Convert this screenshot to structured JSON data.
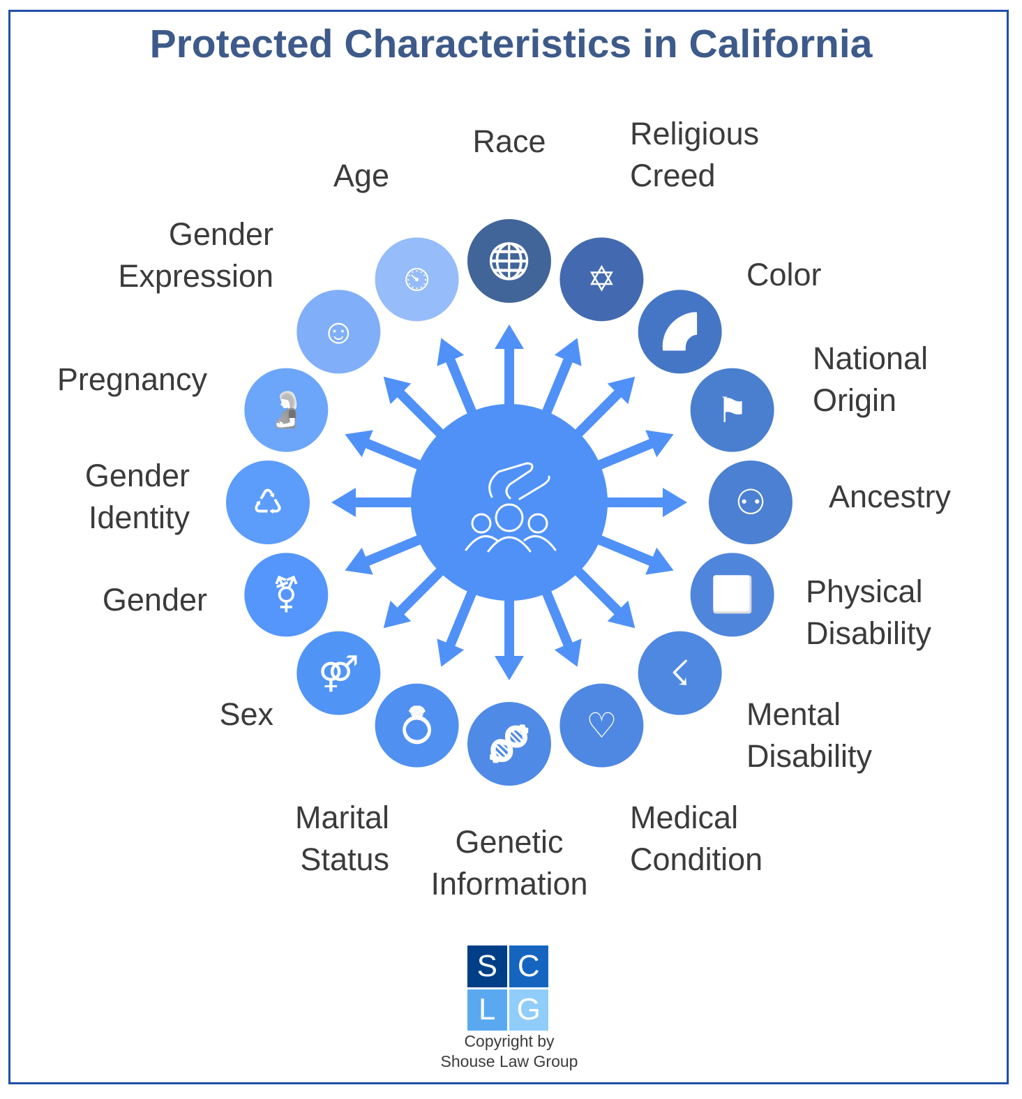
{
  "title": "Protected Characteristics in California",
  "colors": {
    "arrow": "#5091f8",
    "center": "#5091f8",
    "title": "#3d5a8a",
    "frame": "#1f4fa8"
  },
  "center_icon": "hand-over-group-icon",
  "items": [
    {
      "label": "Race",
      "icon": "globe-face-icon",
      "color": "#426599"
    },
    {
      "label": "Religious\nCreed",
      "icon": "star-scroll-icon",
      "color": "#436ab0"
    },
    {
      "label": "Color",
      "icon": "clapperboard-rainbow-icon",
      "color": "#4576c6"
    },
    {
      "label": "National\nOrigin",
      "icon": "flag-path-icon",
      "color": "#4a7fd0"
    },
    {
      "label": "Ancestry",
      "icon": "family-tree-icon",
      "color": "#4c80d2"
    },
    {
      "label": "Physical\nDisability",
      "icon": "wheelchair-icon",
      "color": "#4f86dc"
    },
    {
      "label": "Mental\nDisability",
      "icon": "head-lightning-icon",
      "color": "#4f88e0"
    },
    {
      "label": "Medical\nCondition",
      "icon": "heart-stethoscope-icon",
      "color": "#4f88e2"
    },
    {
      "label": "Genetic\nInformation",
      "icon": "dna-icon",
      "color": "#4f8ae6"
    },
    {
      "label": "Marital\nStatus",
      "icon": "ring-heart-icon",
      "color": "#5090f0"
    },
    {
      "label": "Sex",
      "icon": "male-female-icon",
      "color": "#5094f5"
    },
    {
      "label": "Gender",
      "icon": "transgender-symbol-icon",
      "color": "#5496fb"
    },
    {
      "label": "Gender\nIdentity",
      "icon": "person-cycle-icon",
      "color": "#5c9cfb"
    },
    {
      "label": "Pregnancy",
      "icon": "pregnant-icon",
      "color": "#6ca6fb"
    },
    {
      "label": "Gender\nExpression",
      "icon": "person-hat-icon",
      "color": "#80aef9"
    },
    {
      "label": "Age",
      "icon": "clock-person-icon",
      "color": "#96bcfa"
    }
  ],
  "glyphs": [
    "🌐",
    "✡",
    "🌈",
    "⚑",
    "⚇",
    "♿",
    "☇",
    "♡",
    "🧬",
    "💍",
    "⚤",
    "⚧",
    "♺",
    "🤰",
    "☺",
    "⏲"
  ],
  "logo": {
    "letters": [
      "S",
      "C",
      "L",
      "G"
    ],
    "colors": [
      "#003f87",
      "#1565c0",
      "#5aa9f0",
      "#90cdfb"
    ]
  },
  "copyright": "Copyright by\nShouse Law Group"
}
